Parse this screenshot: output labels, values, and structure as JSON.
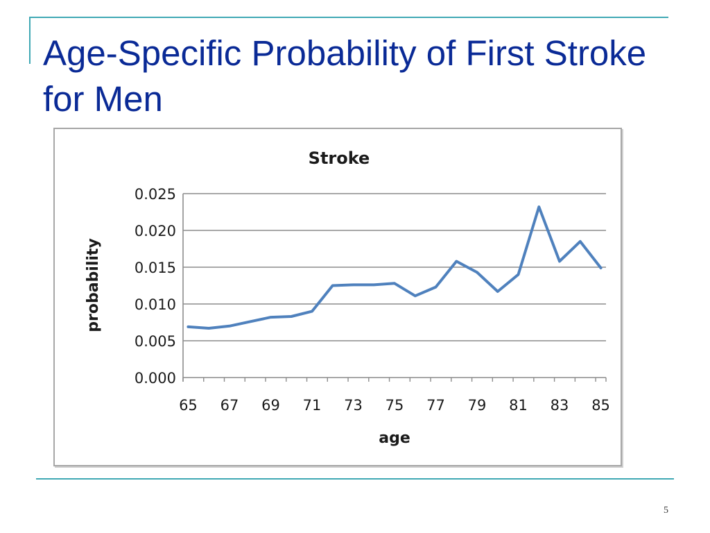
{
  "slide": {
    "title": "Age-Specific Probability of First Stroke for Men",
    "page_number": "5"
  },
  "colors": {
    "accent": "#3fa8b4",
    "title": "#0a2a96",
    "series": "#4f81bd",
    "grid": "#8c8c8c"
  },
  "chart_data": {
    "type": "line",
    "title": "Stroke",
    "xlabel": "age",
    "ylabel": "probability",
    "xlim": [
      65,
      85
    ],
    "ylim": [
      0,
      0.025
    ],
    "y_ticks": [
      "0.000",
      "0.005",
      "0.010",
      "0.015",
      "0.020",
      "0.025"
    ],
    "x_tick_labels": [
      "65",
      "67",
      "69",
      "71",
      "73",
      "75",
      "77",
      "79",
      "81",
      "83",
      "85"
    ],
    "grid": "horizontal",
    "legend": "none",
    "series": [
      {
        "x": [
          65,
          66,
          67,
          68,
          69,
          70,
          71,
          72,
          73,
          74,
          75,
          76,
          77,
          78,
          79,
          80,
          81,
          82,
          83,
          84,
          85
        ],
        "values": [
          0.0069,
          0.0067,
          0.007,
          0.0076,
          0.0082,
          0.0083,
          0.009,
          0.0125,
          0.0126,
          0.0126,
          0.0128,
          0.0111,
          0.0123,
          0.0158,
          0.0143,
          0.0117,
          0.014,
          0.0232,
          0.0158,
          0.0185,
          0.0149
        ]
      }
    ]
  }
}
